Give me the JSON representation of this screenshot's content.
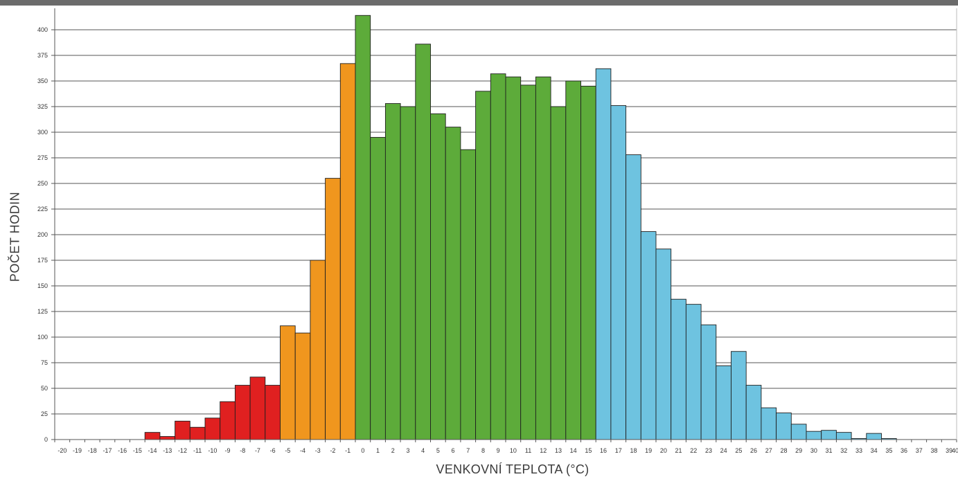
{
  "chart_data": {
    "type": "bar",
    "xlabel": "VENKOVNÍ TEPLOTA (°C)",
    "ylabel": "POČET HODIN",
    "ylim": [
      0,
      400
    ],
    "yticks": [
      0,
      25,
      50,
      75,
      100,
      125,
      150,
      175,
      200,
      225,
      250,
      275,
      300,
      325,
      350,
      375,
      400
    ],
    "xticks": [
      -20,
      -19,
      -18,
      -17,
      -16,
      -15,
      -14,
      -13,
      -12,
      -11,
      -10,
      -9,
      -8,
      -7,
      -6,
      -5,
      -4,
      -3,
      -2,
      -1,
      0,
      1,
      2,
      3,
      4,
      5,
      6,
      7,
      8,
      9,
      10,
      11,
      12,
      13,
      14,
      15,
      16,
      17,
      18,
      19,
      20,
      21,
      22,
      23,
      24,
      25,
      26,
      27,
      28,
      29,
      30,
      31,
      32,
      33,
      34,
      35,
      36,
      37,
      38,
      39,
      40
    ],
    "grid": true,
    "legend": "none",
    "bars": [
      {
        "x": -14,
        "value": 7,
        "color": "#e02020"
      },
      {
        "x": -13,
        "value": 3,
        "color": "#e02020"
      },
      {
        "x": -12,
        "value": 18,
        "color": "#e02020"
      },
      {
        "x": -11,
        "value": 12,
        "color": "#e02020"
      },
      {
        "x": -10,
        "value": 21,
        "color": "#e02020"
      },
      {
        "x": -9,
        "value": 37,
        "color": "#e02020"
      },
      {
        "x": -8,
        "value": 53,
        "color": "#e02020"
      },
      {
        "x": -7,
        "value": 61,
        "color": "#e02020"
      },
      {
        "x": -6,
        "value": 53,
        "color": "#e02020"
      },
      {
        "x": -5,
        "value": 111,
        "color": "#f0961e"
      },
      {
        "x": -4,
        "value": 104,
        "color": "#f0961e"
      },
      {
        "x": -3,
        "value": 175,
        "color": "#f0961e"
      },
      {
        "x": -2,
        "value": 255,
        "color": "#f0961e"
      },
      {
        "x": -1,
        "value": 367,
        "color": "#f0961e"
      },
      {
        "x": 0,
        "value": 414,
        "color": "#5dab3a"
      },
      {
        "x": 1,
        "value": 295,
        "color": "#5dab3a"
      },
      {
        "x": 2,
        "value": 328,
        "color": "#5dab3a"
      },
      {
        "x": 3,
        "value": 325,
        "color": "#5dab3a"
      },
      {
        "x": 4,
        "value": 386,
        "color": "#5dab3a"
      },
      {
        "x": 5,
        "value": 318,
        "color": "#5dab3a"
      },
      {
        "x": 6,
        "value": 305,
        "color": "#5dab3a"
      },
      {
        "x": 7,
        "value": 283,
        "color": "#5dab3a"
      },
      {
        "x": 8,
        "value": 340,
        "color": "#5dab3a"
      },
      {
        "x": 9,
        "value": 357,
        "color": "#5dab3a"
      },
      {
        "x": 10,
        "value": 354,
        "color": "#5dab3a"
      },
      {
        "x": 11,
        "value": 346,
        "color": "#5dab3a"
      },
      {
        "x": 12,
        "value": 354,
        "color": "#5dab3a"
      },
      {
        "x": 13,
        "value": 325,
        "color": "#5dab3a"
      },
      {
        "x": 14,
        "value": 350,
        "color": "#5dab3a"
      },
      {
        "x": 15,
        "value": 345,
        "color": "#5dab3a"
      },
      {
        "x": 16,
        "value": 362,
        "color": "#6ec3e0"
      },
      {
        "x": 17,
        "value": 326,
        "color": "#6ec3e0"
      },
      {
        "x": 18,
        "value": 278,
        "color": "#6ec3e0"
      },
      {
        "x": 19,
        "value": 203,
        "color": "#6ec3e0"
      },
      {
        "x": 20,
        "value": 186,
        "color": "#6ec3e0"
      },
      {
        "x": 21,
        "value": 137,
        "color": "#6ec3e0"
      },
      {
        "x": 22,
        "value": 132,
        "color": "#6ec3e0"
      },
      {
        "x": 23,
        "value": 112,
        "color": "#6ec3e0"
      },
      {
        "x": 24,
        "value": 72,
        "color": "#6ec3e0"
      },
      {
        "x": 25,
        "value": 86,
        "color": "#6ec3e0"
      },
      {
        "x": 26,
        "value": 53,
        "color": "#6ec3e0"
      },
      {
        "x": 27,
        "value": 31,
        "color": "#6ec3e0"
      },
      {
        "x": 28,
        "value": 26,
        "color": "#6ec3e0"
      },
      {
        "x": 29,
        "value": 15,
        "color": "#6ec3e0"
      },
      {
        "x": 30,
        "value": 8,
        "color": "#6ec3e0"
      },
      {
        "x": 31,
        "value": 9,
        "color": "#6ec3e0"
      },
      {
        "x": 32,
        "value": 7,
        "color": "#6ec3e0"
      },
      {
        "x": 33,
        "value": 1,
        "color": "#6ec3e0"
      },
      {
        "x": 34,
        "value": 6,
        "color": "#6ec3e0"
      },
      {
        "x": 35,
        "value": 1,
        "color": "#6ec3e0"
      }
    ]
  }
}
